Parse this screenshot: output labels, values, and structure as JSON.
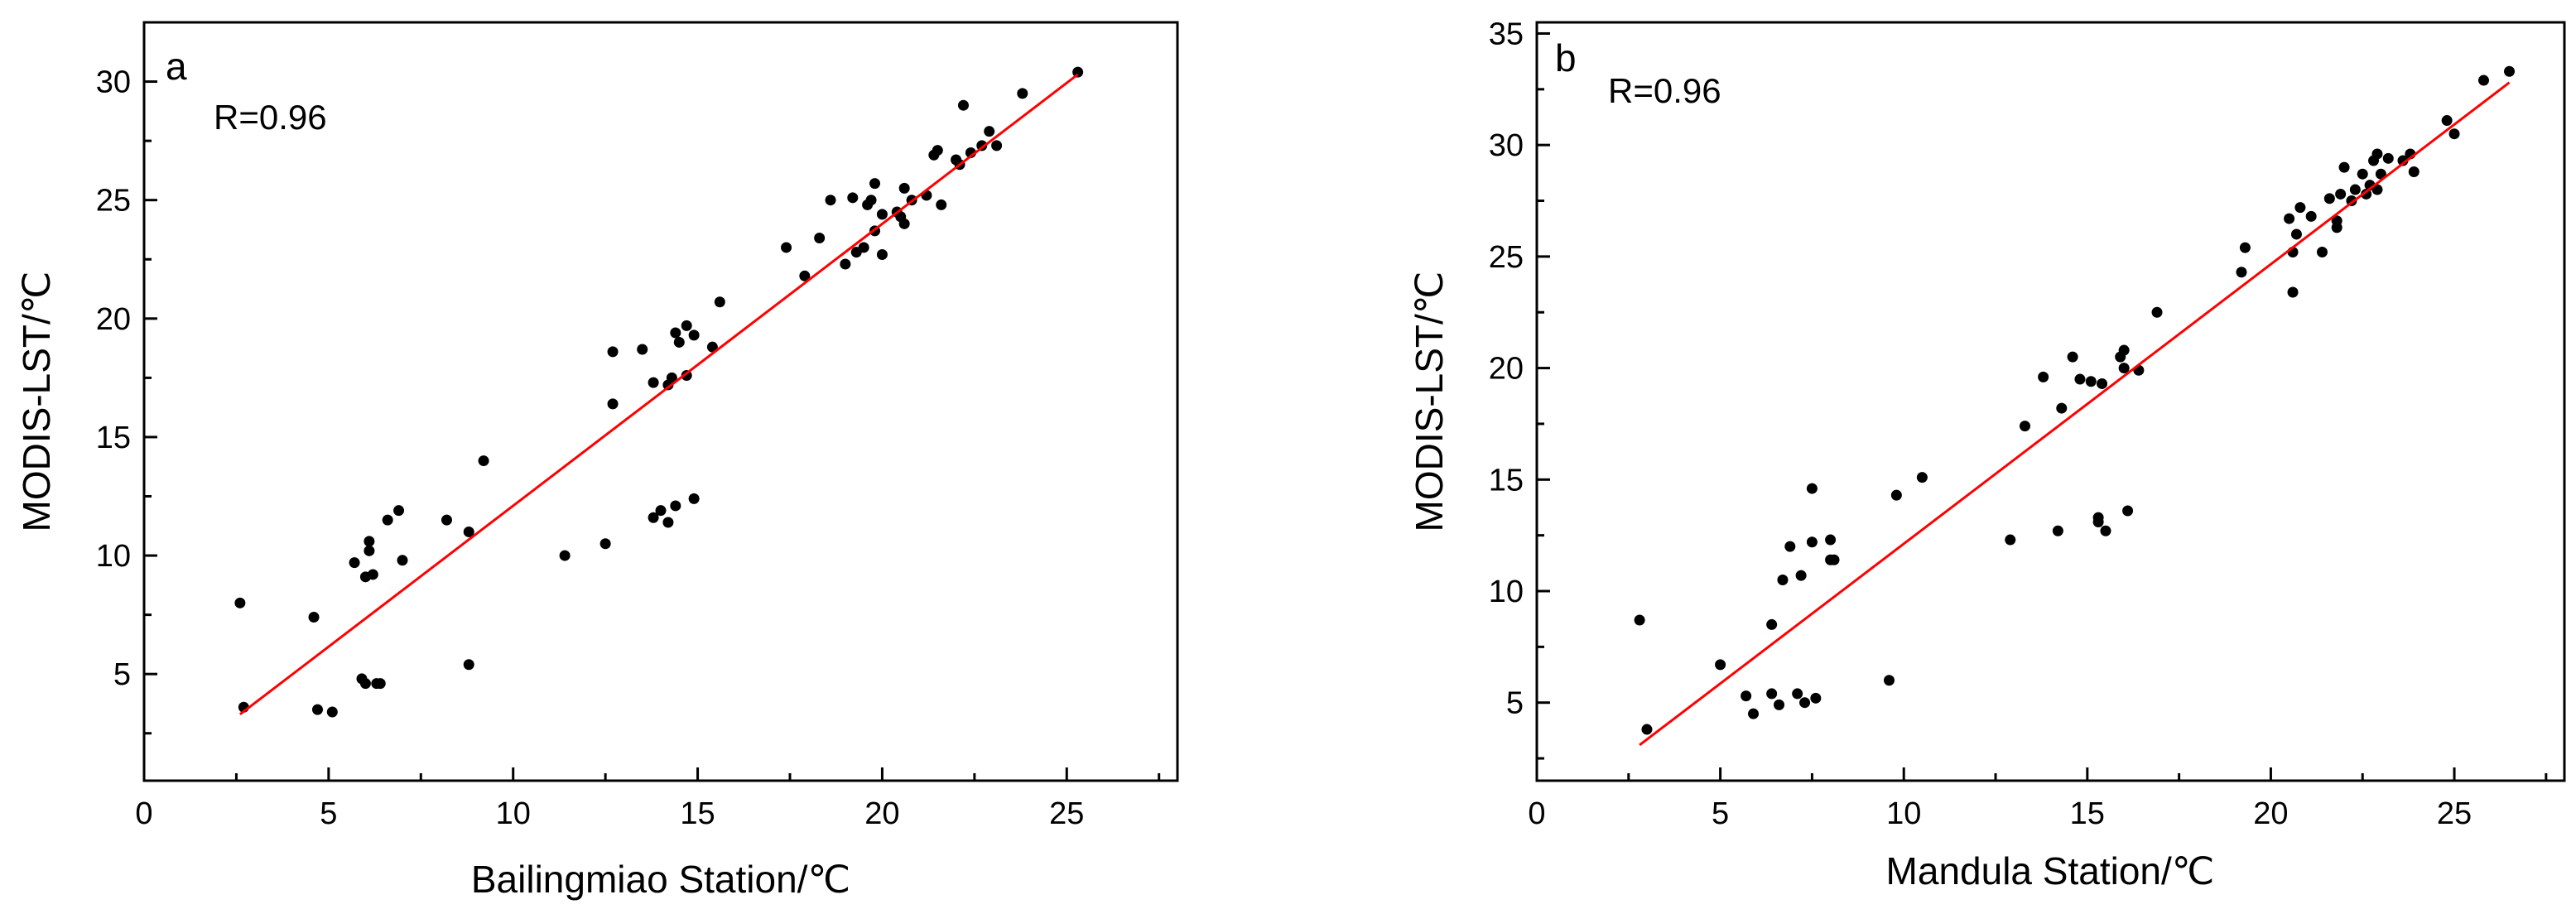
{
  "chart_data": [
    {
      "type": "scatter",
      "panel_label": "a",
      "annotation": "R=0.96",
      "xlabel": "Bailingmiao Station/℃",
      "ylabel": "MODIS-LST/℃",
      "xlim": [
        0,
        28
      ],
      "ylim": [
        0.5,
        32.5
      ],
      "xticks": [
        0,
        5,
        10,
        15,
        20,
        25
      ],
      "yticks": [
        5,
        10,
        15,
        20,
        25,
        30
      ],
      "fit_line": {
        "x": [
          2.6,
          25.3
        ],
        "y": [
          3.3,
          30.3
        ],
        "color": "#ff0000"
      },
      "points": [
        [
          2.6,
          8.0
        ],
        [
          2.7,
          3.6
        ],
        [
          4.6,
          7.4
        ],
        [
          4.7,
          3.5
        ],
        [
          5.1,
          3.4
        ],
        [
          5.7,
          9.7
        ],
        [
          5.9,
          4.8
        ],
        [
          6.0,
          9.1
        ],
        [
          6.0,
          4.6
        ],
        [
          6.1,
          10.6
        ],
        [
          6.1,
          10.2
        ],
        [
          6.2,
          9.2
        ],
        [
          6.3,
          4.6
        ],
        [
          6.4,
          4.6
        ],
        [
          6.6,
          11.5
        ],
        [
          6.9,
          11.9
        ],
        [
          7.0,
          9.8
        ],
        [
          8.2,
          11.5
        ],
        [
          8.8,
          11.0
        ],
        [
          8.8,
          5.4
        ],
        [
          9.2,
          14.0
        ],
        [
          11.4,
          10.0
        ],
        [
          12.5,
          10.5
        ],
        [
          12.7,
          18.6
        ],
        [
          12.7,
          16.4
        ],
        [
          13.5,
          18.7
        ],
        [
          13.8,
          17.3
        ],
        [
          13.8,
          11.6
        ],
        [
          14.0,
          11.9
        ],
        [
          14.2,
          17.2
        ],
        [
          14.2,
          11.4
        ],
        [
          14.3,
          17.5
        ],
        [
          14.4,
          19.4
        ],
        [
          14.4,
          12.1
        ],
        [
          14.5,
          19.0
        ],
        [
          14.7,
          19.7
        ],
        [
          14.7,
          17.6
        ],
        [
          14.9,
          19.3
        ],
        [
          14.9,
          12.4
        ],
        [
          15.4,
          18.8
        ],
        [
          15.6,
          20.7
        ],
        [
          17.4,
          23.0
        ],
        [
          17.9,
          21.8
        ],
        [
          18.3,
          23.4
        ],
        [
          18.6,
          25.0
        ],
        [
          19.0,
          22.3
        ],
        [
          19.2,
          25.1
        ],
        [
          19.3,
          22.8
        ],
        [
          19.5,
          23.0
        ],
        [
          19.6,
          24.8
        ],
        [
          19.7,
          25.0
        ],
        [
          19.8,
          25.7
        ],
        [
          19.8,
          23.7
        ],
        [
          20.0,
          22.7
        ],
        [
          20.0,
          24.4
        ],
        [
          20.4,
          24.5
        ],
        [
          20.5,
          24.3
        ],
        [
          20.6,
          25.5
        ],
        [
          20.6,
          24.0
        ],
        [
          20.8,
          25.0
        ],
        [
          21.2,
          25.2
        ],
        [
          21.4,
          26.9
        ],
        [
          21.5,
          27.1
        ],
        [
          21.6,
          24.8
        ],
        [
          22.0,
          26.7
        ],
        [
          22.1,
          26.5
        ],
        [
          22.2,
          29.0
        ],
        [
          22.4,
          27.0
        ],
        [
          22.7,
          27.3
        ],
        [
          22.9,
          27.9
        ],
        [
          23.1,
          27.3
        ],
        [
          23.8,
          29.5
        ],
        [
          25.3,
          30.4
        ]
      ]
    },
    {
      "type": "scatter",
      "panel_label": "b",
      "annotation": "R=0.96",
      "xlabel": "Mandula Station/℃",
      "ylabel": "MODIS-LST/℃",
      "xlim": [
        0,
        28
      ],
      "ylim": [
        1.5,
        35.5
      ],
      "xticks": [
        0,
        5,
        10,
        15,
        20,
        25
      ],
      "yticks": [
        5,
        10,
        15,
        20,
        25,
        30,
        35
      ],
      "fit_line": {
        "x": [
          2.8,
          26.5
        ],
        "y": [
          3.1,
          32.8
        ],
        "color": "#ff0000"
      },
      "points": [
        [
          2.8,
          8.7
        ],
        [
          3.0,
          3.8
        ],
        [
          5.0,
          6.7
        ],
        [
          5.7,
          5.3
        ],
        [
          5.9,
          4.5
        ],
        [
          6.4,
          8.5
        ],
        [
          6.4,
          5.4
        ],
        [
          6.6,
          4.9
        ],
        [
          6.7,
          10.5
        ],
        [
          6.9,
          12.0
        ],
        [
          7.1,
          5.4
        ],
        [
          7.2,
          10.7
        ],
        [
          7.3,
          5.0
        ],
        [
          7.5,
          12.2
        ],
        [
          7.5,
          14.6
        ],
        [
          7.6,
          5.2
        ],
        [
          8.0,
          11.4
        ],
        [
          8.0,
          12.3
        ],
        [
          8.1,
          11.4
        ],
        [
          9.6,
          6.0
        ],
        [
          9.8,
          14.3
        ],
        [
          10.5,
          15.1
        ],
        [
          12.9,
          12.3
        ],
        [
          13.3,
          17.4
        ],
        [
          13.8,
          19.6
        ],
        [
          14.2,
          12.7
        ],
        [
          14.3,
          18.2
        ],
        [
          14.6,
          20.5
        ],
        [
          14.8,
          19.5
        ],
        [
          15.1,
          19.4
        ],
        [
          15.3,
          13.1
        ],
        [
          15.3,
          13.3
        ],
        [
          15.4,
          19.3
        ],
        [
          15.5,
          12.7
        ],
        [
          15.9,
          20.5
        ],
        [
          16.0,
          20.8
        ],
        [
          16.0,
          20.0
        ],
        [
          16.1,
          13.6
        ],
        [
          16.4,
          19.9
        ],
        [
          16.9,
          22.5
        ],
        [
          19.2,
          24.3
        ],
        [
          19.3,
          25.4
        ],
        [
          20.5,
          26.7
        ],
        [
          20.6,
          25.2
        ],
        [
          20.6,
          23.4
        ],
        [
          20.7,
          26.0
        ],
        [
          20.8,
          27.2
        ],
        [
          21.1,
          26.8
        ],
        [
          21.4,
          25.2
        ],
        [
          21.6,
          27.6
        ],
        [
          21.8,
          26.3
        ],
        [
          21.8,
          26.6
        ],
        [
          21.9,
          27.8
        ],
        [
          22.0,
          29.0
        ],
        [
          22.2,
          27.5
        ],
        [
          22.3,
          28.0
        ],
        [
          22.5,
          28.7
        ],
        [
          22.6,
          27.8
        ],
        [
          22.7,
          28.2
        ],
        [
          22.8,
          29.3
        ],
        [
          22.9,
          28.0
        ],
        [
          22.9,
          29.6
        ],
        [
          23.0,
          28.7
        ],
        [
          23.2,
          29.4
        ],
        [
          23.6,
          29.3
        ],
        [
          23.8,
          29.6
        ],
        [
          23.9,
          28.8
        ],
        [
          24.8,
          31.1
        ],
        [
          25.0,
          30.5
        ],
        [
          25.8,
          32.9
        ],
        [
          26.5,
          33.3
        ]
      ]
    }
  ]
}
